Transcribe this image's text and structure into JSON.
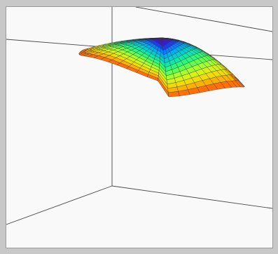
{
  "viewer": {
    "frame_color": "#c8c8c8",
    "canvas_background": "#f9f9f9",
    "box_edge_color": "#4a4a4a",
    "mesh_line_color": "#2c2c2c",
    "colormap": [
      "#7a00c8",
      "#2020ff",
      "#00a0ff",
      "#00e0c0",
      "#40ff60",
      "#c8ff20",
      "#ffd000",
      "#ff5010"
    ]
  }
}
